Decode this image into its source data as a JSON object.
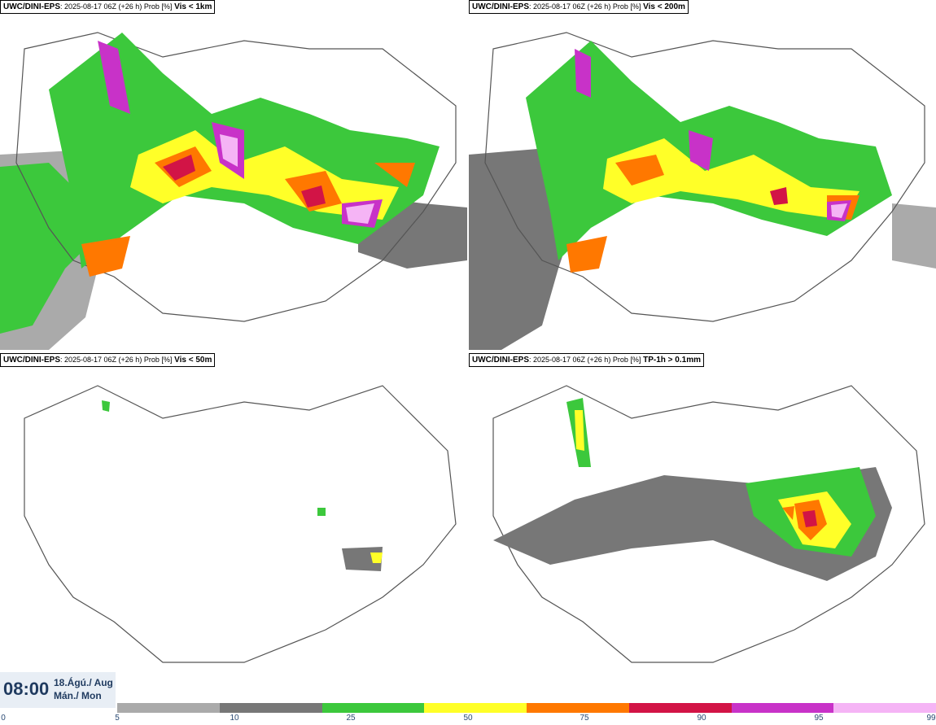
{
  "panels": [
    {
      "model": "UWC/DINI-EPS",
      "meta": ": 2025-08-17 06Z (+26 h) Prob [%]",
      "var": "Vis < 1km"
    },
    {
      "model": "UWC/DINI-EPS",
      "meta": ": 2025-08-17 06Z (+26 h) Prob [%]",
      "var": "Vis < 200m"
    },
    {
      "model": "UWC/DINI-EPS",
      "meta": ": 2025-08-17 06Z (+26 h) Prob [%]",
      "var": "Vis < 50m"
    },
    {
      "model": "UWC/DINI-EPS",
      "meta": ": 2025-08-17 06Z (+26 h) Prob [%]",
      "var": "TP-1h > 0.1mm"
    }
  ],
  "time": {
    "value": "08:00",
    "date_line1": "18.Ágú./ Aug",
    "date_line2": "Mán./ Mon"
  },
  "colorbar": {
    "ticks": [
      "0",
      "5",
      "10",
      "25",
      "50",
      "75",
      "90",
      "95",
      "99"
    ],
    "colors": [
      "#aaaaaa",
      "#777777",
      "#3cc83c",
      "#ffff28",
      "#ff7800",
      "#d21446",
      "#c832c8",
      "#f5b4f5"
    ]
  }
}
